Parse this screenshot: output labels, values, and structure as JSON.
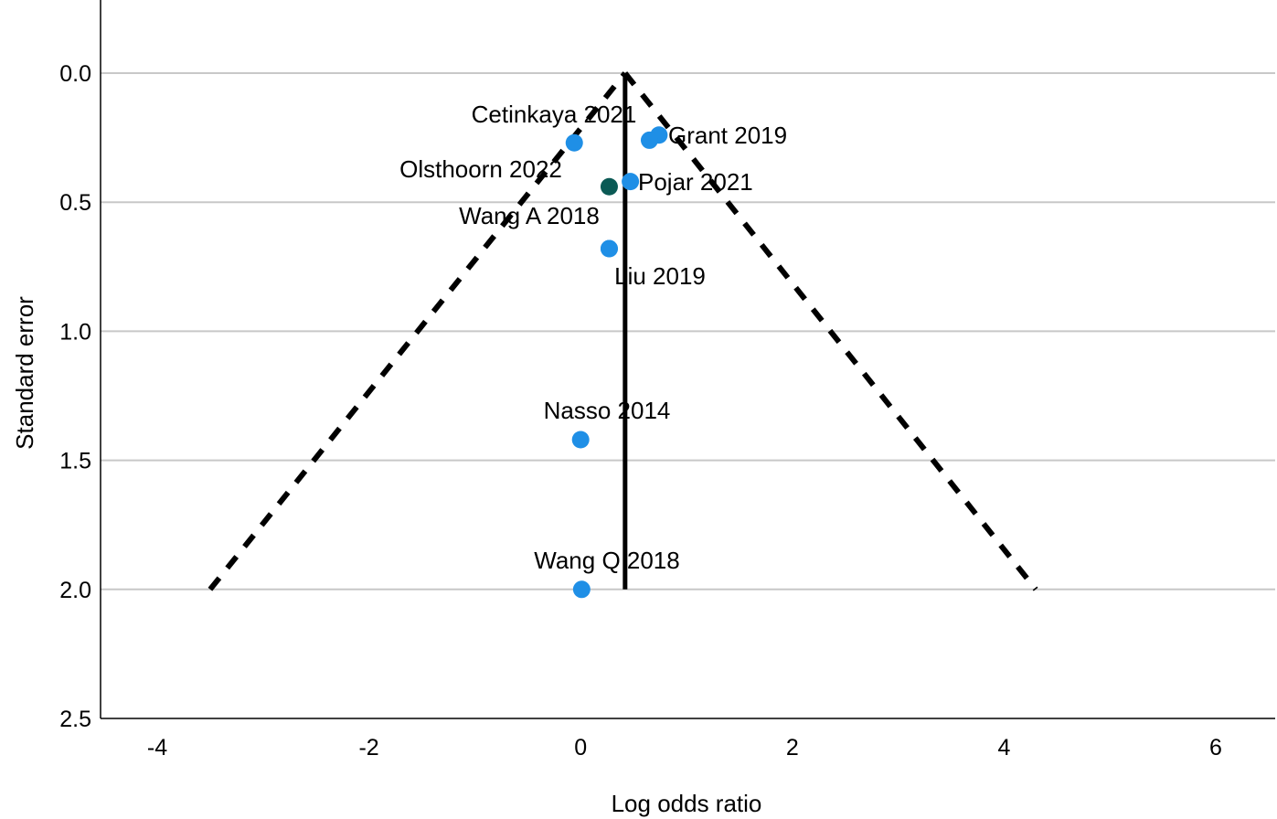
{
  "chart_data": {
    "type": "scatter",
    "title": "",
    "xlabel": "Log odds ratio",
    "ylabel": "Standard error",
    "xlim": [
      -4.5,
      6.5
    ],
    "ylim": [
      -0.25,
      2.5
    ],
    "y_reversed": true,
    "x_ticks": [
      -4,
      -2,
      0,
      2,
      4,
      6
    ],
    "x_tick_labels": [
      "-4",
      "-2",
      "0",
      "2",
      "4",
      "6"
    ],
    "y_ticks": [
      0.0,
      0.5,
      1.0,
      1.5,
      2.0,
      2.5
    ],
    "y_tick_labels": [
      "0.0",
      "0.5",
      "1.0",
      "1.5",
      "2.0",
      "2.5"
    ],
    "grid": "horizontal",
    "legend": "none",
    "pooled_estimate": 0.42,
    "funnel": {
      "apex": [
        0.42,
        0.0
      ],
      "left_bottom": [
        -3.5,
        2.0
      ],
      "right_bottom": [
        4.3,
        2.0
      ]
    },
    "studies": [
      {
        "label": "Cetinkaya 2021",
        "x": -0.06,
        "se": 0.27,
        "color": "#1f8fe6"
      },
      {
        "label": "Grant 2019",
        "x": 0.74,
        "se": 0.24,
        "color": "#1f8fe6"
      },
      {
        "label": "",
        "x": 0.65,
        "se": 0.26,
        "color": "#1f8fe6"
      },
      {
        "label": "Olsthoorn 2022",
        "x": 0.27,
        "se": 0.44,
        "color": "#0b5a55"
      },
      {
        "label": "Pojar 2021",
        "x": 0.47,
        "se": 0.42,
        "color": "#1f8fe6"
      },
      {
        "label": "Wang A 2018",
        "x": 0.27,
        "se": 0.68,
        "color": "#1f8fe6"
      },
      {
        "label": "Liu 2019",
        "x": 0.27,
        "se": 0.68,
        "color": "#1f8fe6"
      },
      {
        "label": "Nasso 2014",
        "x": 0.0,
        "se": 1.42,
        "color": "#1f8fe6"
      },
      {
        "label": "Wang Q 2018",
        "x": 0.01,
        "se": 2.0,
        "color": "#1f8fe6"
      }
    ],
    "colors": {
      "axis": "#000000",
      "grid": "#c8c8c8",
      "funnel": "#000000",
      "pooled_line": "#000000"
    }
  }
}
